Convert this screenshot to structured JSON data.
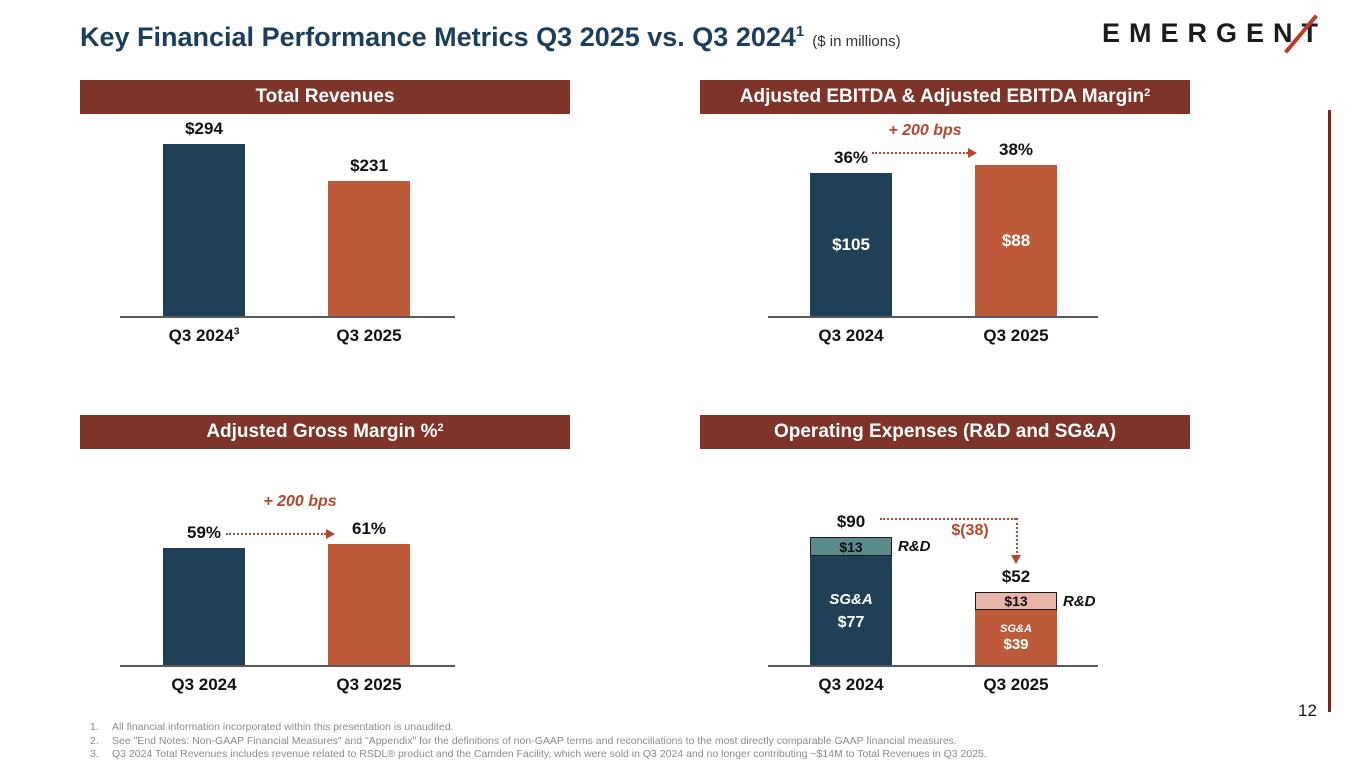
{
  "slide": {
    "title": "Key Financial Performance Metrics Q3 2025 vs. Q3 2024",
    "title_sup": "1",
    "units_note": "($ in millions)",
    "logo_text": "EMERGENT",
    "page_number": "12",
    "footnotes": [
      {
        "num": "1.",
        "text": "All financial information incorporated within this presentation is unaudited."
      },
      {
        "num": "2.",
        "text": "See \"End Notes: Non-GAAP Financial Measures\" and \"Appendix\" for the definitions of non-GAAP terms and reconciliations to the most directly comparable GAAP financial measures."
      },
      {
        "num": "3.",
        "text": "Q3 2024 Total Revenues includes revenue related to RSDL® product and the Camden Facility, which were sold in Q3 2024 and no longer contributing ~$14M to Total Revenues in Q3 2025."
      }
    ]
  },
  "colors": {
    "navy_bar": "#1f4056",
    "rust_bar": "#bd5a3a",
    "teal_segment": "#5a8a8b",
    "pink_segment": "#eab5a9",
    "panel_header": "#7e3428",
    "annotation": "#b04a2f",
    "title_text": "#1d3e5a",
    "accent_line": "#7a241c"
  },
  "chart_data": [
    {
      "type": "bar",
      "title": "Total Revenues",
      "title_sup": "",
      "categories": [
        "Q3 2024",
        "Q3 2025"
      ],
      "category_sups": [
        "3",
        ""
      ],
      "values": [
        294,
        231
      ],
      "value_labels": [
        "$294",
        "$231"
      ],
      "bar_colors": [
        "#1f4056",
        "#bd5a3a"
      ],
      "ylim": [
        0,
        340
      ]
    },
    {
      "type": "bar",
      "title": "Adjusted EBITDA & Adjusted EBITDA Margin",
      "title_sup": "2",
      "categories": [
        "Q3 2024",
        "Q3 2025"
      ],
      "margin_values": [
        36,
        38
      ],
      "margin_labels": [
        "36%",
        "38%"
      ],
      "ebitda_values": [
        105,
        88
      ],
      "ebitda_labels": [
        "$105",
        "$88"
      ],
      "annotation": "+ 200 bps",
      "bar_colors": [
        "#1f4056",
        "#bd5a3a"
      ],
      "ylim": [
        0,
        50
      ]
    },
    {
      "type": "bar",
      "title": "Adjusted Gross Margin %",
      "title_sup": "2",
      "categories": [
        "Q3 2024",
        "Q3 2025"
      ],
      "values": [
        59,
        61
      ],
      "value_labels": [
        "59%",
        "61%"
      ],
      "annotation": "+ 200 bps",
      "bar_colors": [
        "#1f4056",
        "#bd5a3a"
      ],
      "ylim": [
        0,
        100
      ]
    },
    {
      "type": "stacked-bar",
      "title": "Operating Expenses (R&D and SG&A)",
      "title_sup": "",
      "categories": [
        "Q3 2024",
        "Q3 2025"
      ],
      "series": [
        {
          "name": "SG&A",
          "values": [
            77,
            39
          ]
        },
        {
          "name": "R&D",
          "values": [
            13,
            13
          ]
        }
      ],
      "total_labels": [
        "$90",
        "$52"
      ],
      "rd_segment_labels": [
        "$13",
        "$13"
      ],
      "sgna_segment_labels": [
        "$77",
        "$39"
      ],
      "rd_name": "R&D",
      "annotation": "$(38)",
      "ylim": [
        0,
        140
      ]
    }
  ]
}
